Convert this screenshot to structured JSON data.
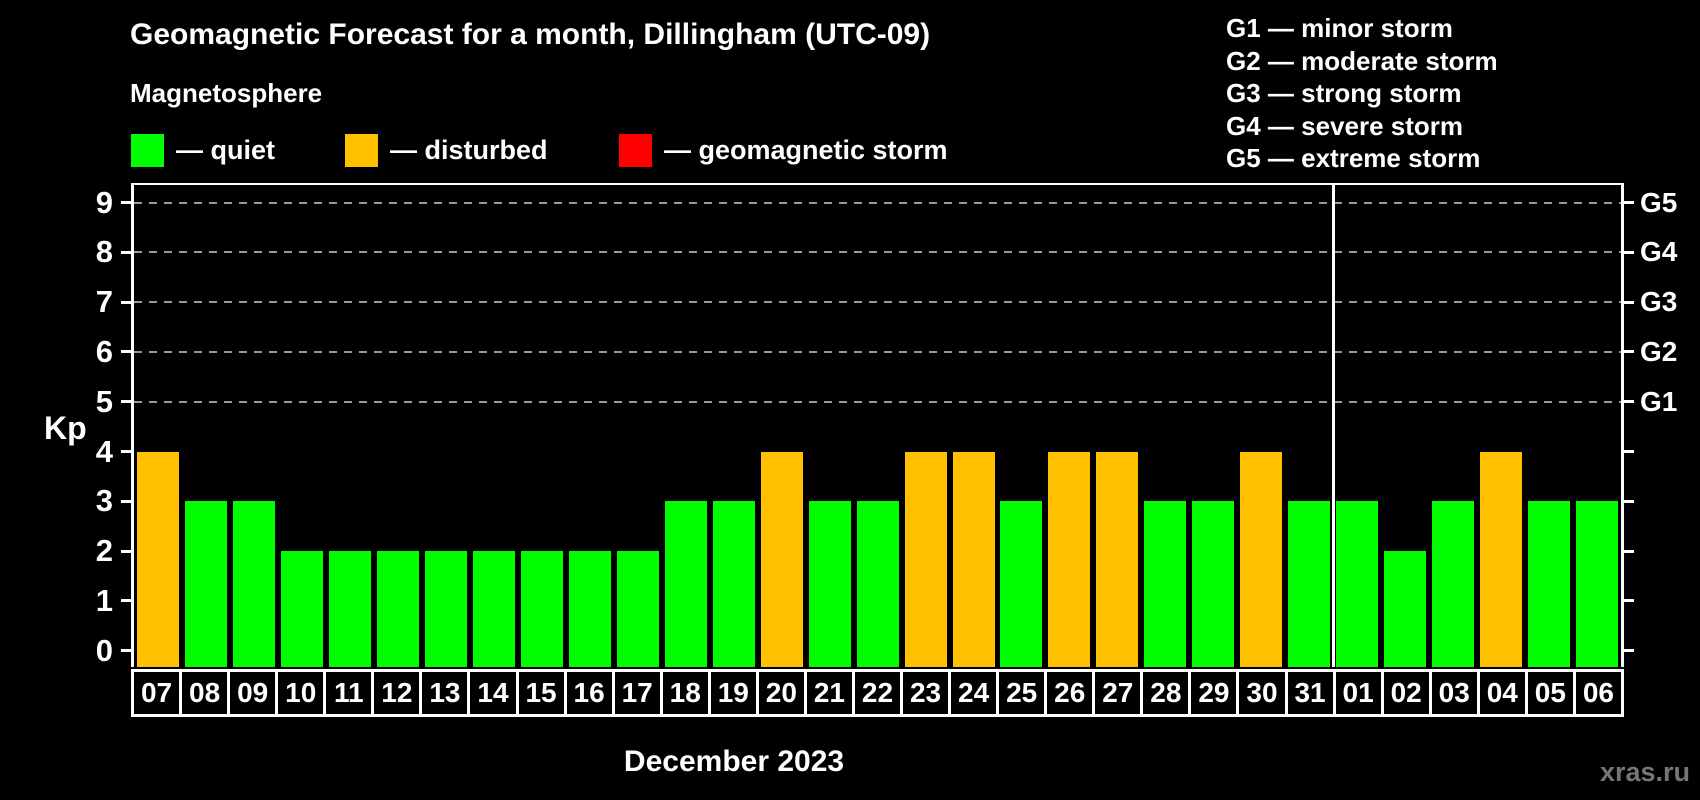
{
  "subtitle": "Magnetosphere",
  "legend": [
    {
      "label": "— quiet",
      "color": "#00ff00"
    },
    {
      "label": "— disturbed",
      "color": "#ffc000"
    },
    {
      "label": "— geomagnetic storm",
      "color": "#ff0000"
    }
  ],
  "storm_scale": [
    "G1 — minor storm",
    "G2 — moderate storm",
    "G3 — strong storm",
    "G4 — severe storm",
    "G5 — extreme storm"
  ],
  "watermark": "xras.ru",
  "chart_data": {
    "type": "bar",
    "title": "Geomagnetic Forecast for a month, Dillingham (UTC-09)",
    "ylabel": "Kp",
    "xlabel": "December 2023",
    "ylim": [
      0,
      9
    ],
    "yticks": [
      0,
      1,
      2,
      3,
      4,
      5,
      6,
      7,
      8,
      9
    ],
    "grid": "dashed-horizontal",
    "grid_levels": [
      5,
      6,
      7,
      8,
      9
    ],
    "right_axis": [
      {
        "kp": 9,
        "label": "G5"
      },
      {
        "kp": 8,
        "label": "G4"
      },
      {
        "kp": 7,
        "label": "G3"
      },
      {
        "kp": 6,
        "label": "G2"
      },
      {
        "kp": 5,
        "label": "G1"
      }
    ],
    "categories": [
      "07",
      "08",
      "09",
      "10",
      "11",
      "12",
      "13",
      "14",
      "15",
      "16",
      "17",
      "18",
      "19",
      "20",
      "21",
      "22",
      "23",
      "24",
      "25",
      "26",
      "27",
      "28",
      "29",
      "30",
      "31",
      "01",
      "02",
      "03",
      "04",
      "05",
      "06"
    ],
    "values": [
      4,
      3,
      3,
      2,
      2,
      2,
      2,
      2,
      2,
      2,
      2,
      3,
      3,
      4,
      3,
      3,
      4,
      4,
      3,
      4,
      4,
      3,
      3,
      4,
      3,
      3,
      2,
      3,
      4,
      3,
      3
    ],
    "states": [
      "disturbed",
      "quiet",
      "quiet",
      "quiet",
      "quiet",
      "quiet",
      "quiet",
      "quiet",
      "quiet",
      "quiet",
      "quiet",
      "quiet",
      "quiet",
      "disturbed",
      "quiet",
      "quiet",
      "disturbed",
      "disturbed",
      "quiet",
      "disturbed",
      "disturbed",
      "quiet",
      "quiet",
      "disturbed",
      "quiet",
      "quiet",
      "quiet",
      "quiet",
      "disturbed",
      "quiet",
      "quiet"
    ],
    "state_colors": {
      "quiet": "#00ff00",
      "disturbed": "#ffc000",
      "storm": "#ff0000"
    },
    "month_separator_after_index": 24,
    "legend_position": "top-left"
  }
}
